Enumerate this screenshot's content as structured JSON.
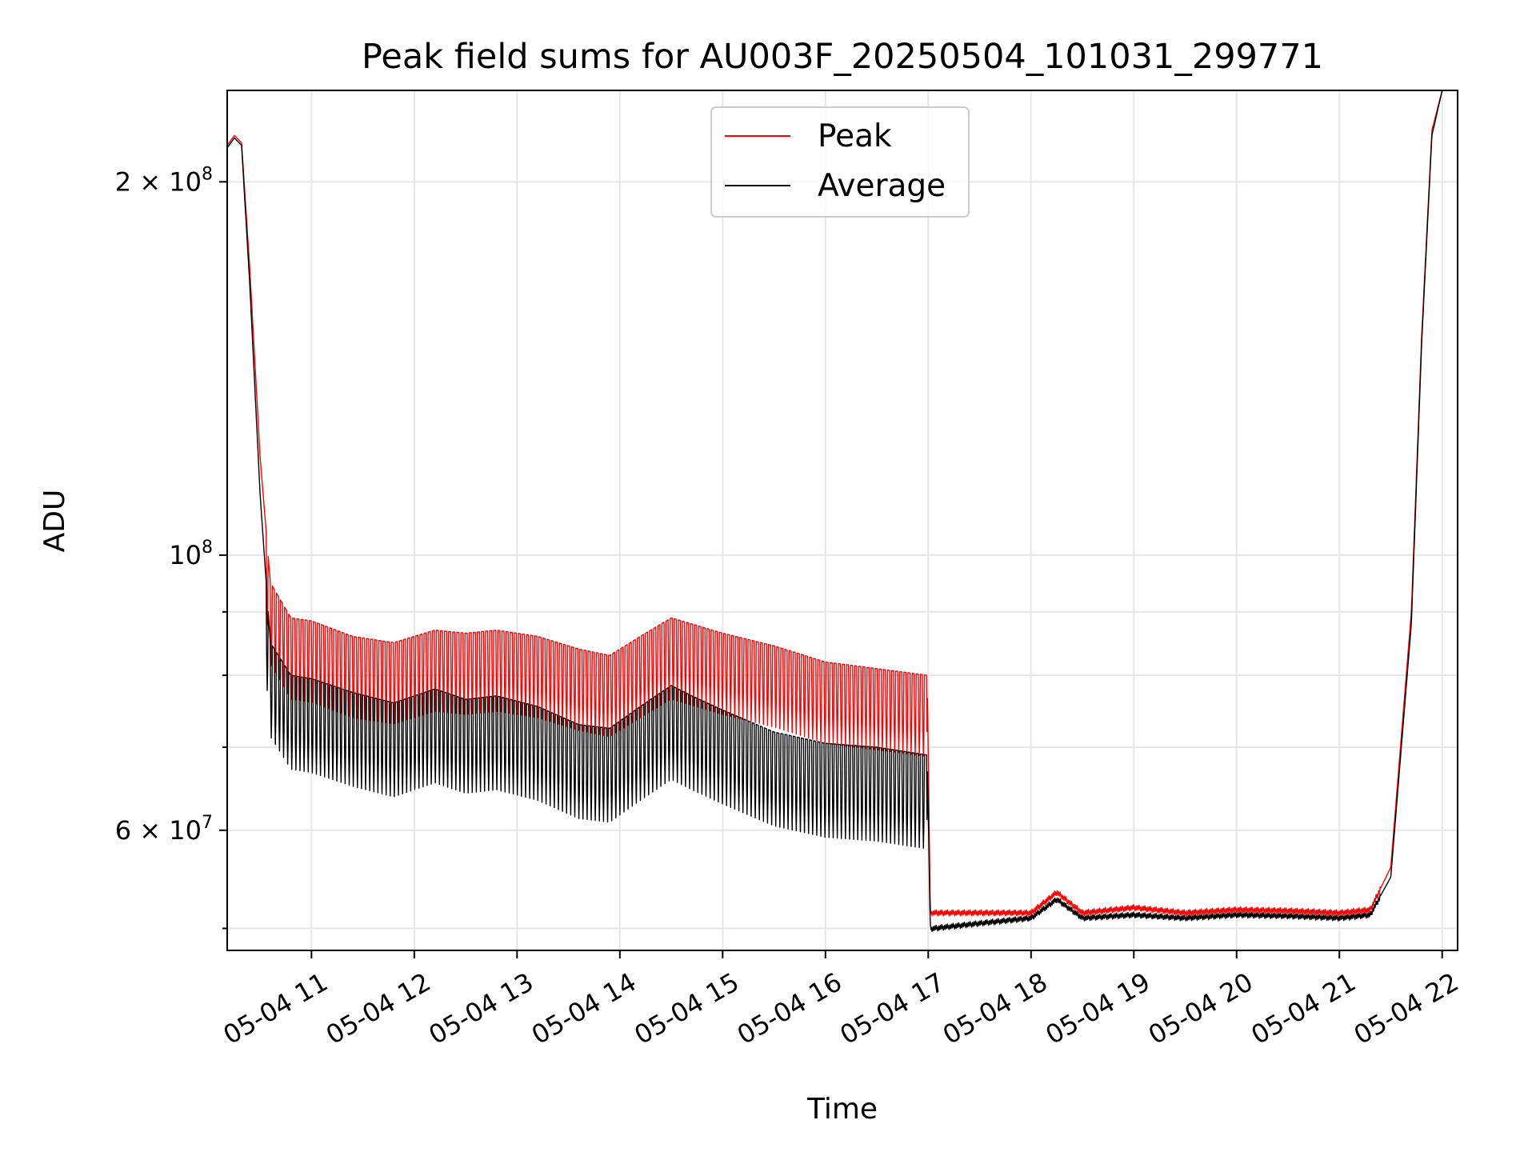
{
  "chart_data": {
    "type": "line",
    "title": "Peak field sums for AU003F_20250504_101031_299771",
    "xlabel": "Time",
    "ylabel": "ADU",
    "yscale": "log",
    "ylim": [
      48000000,
      237000000
    ],
    "xlim_hours": [
      10.18,
      22.15
    ],
    "grid": true,
    "legend_position": "upper-center",
    "x_ticks": [
      {
        "value": 11,
        "label": "05-04 11"
      },
      {
        "value": 12,
        "label": "05-04 12"
      },
      {
        "value": 13,
        "label": "05-04 13"
      },
      {
        "value": 14,
        "label": "05-04 14"
      },
      {
        "value": 15,
        "label": "05-04 15"
      },
      {
        "value": 16,
        "label": "05-04 16"
      },
      {
        "value": 17,
        "label": "05-04 17"
      },
      {
        "value": 18,
        "label": "05-04 18"
      },
      {
        "value": 19,
        "label": "05-04 19"
      },
      {
        "value": 20,
        "label": "05-04 20"
      },
      {
        "value": 21,
        "label": "05-04 21"
      },
      {
        "value": 22,
        "label": "05-04 22"
      }
    ],
    "y_major_ticks": [
      {
        "value": 60000000,
        "mantissa": "6 × 10",
        "exponent": "7"
      },
      {
        "value": 100000000,
        "mantissa": "10",
        "exponent": "8"
      },
      {
        "value": 200000000,
        "mantissa": "2 × 10",
        "exponent": "8"
      }
    ],
    "y_minor_ticks": [
      50000000,
      70000000,
      80000000,
      90000000
    ],
    "series": [
      {
        "name": "Peak",
        "color": "#ff0000",
        "x": [
          10.18,
          10.25,
          10.32,
          10.4,
          10.5,
          10.6,
          10.8,
          11.0,
          11.4,
          11.8,
          12.2,
          12.5,
          12.8,
          13.2,
          13.6,
          13.9,
          14.2,
          14.5,
          14.7,
          15.0,
          15.5,
          16.0,
          16.5,
          16.99,
          17.02,
          17.5,
          18.0,
          18.25,
          18.5,
          19.0,
          19.5,
          20.0,
          20.5,
          21.0,
          21.3,
          21.5,
          21.7,
          21.8,
          21.9,
          22.0,
          22.15
        ],
        "values": [
          214000000,
          218000000,
          215000000,
          170000000,
          120000000,
          95000000,
          89000000,
          88500000,
          86000000,
          85000000,
          87000000,
          86500000,
          87000000,
          86000000,
          84000000,
          83000000,
          86000000,
          89000000,
          88000000,
          86500000,
          84500000,
          82000000,
          81000000,
          80000000,
          51500000,
          51500000,
          51500000,
          53500000,
          51500000,
          52000000,
          51500000,
          51800000,
          51700000,
          51500000,
          51800000,
          56000000,
          90000000,
          150000000,
          220000000,
          237000000,
          237000000
        ]
      },
      {
        "name": "Average",
        "color": "#000000",
        "x": [
          10.18,
          10.25,
          10.32,
          10.4,
          10.5,
          10.6,
          10.8,
          11.0,
          11.4,
          11.8,
          12.2,
          12.5,
          12.8,
          13.2,
          13.6,
          13.9,
          14.2,
          14.5,
          14.7,
          15.0,
          15.5,
          16.0,
          16.5,
          16.99,
          17.02,
          17.5,
          18.0,
          18.25,
          18.5,
          19.0,
          19.5,
          20.0,
          20.5,
          21.0,
          21.3,
          21.5,
          21.7,
          21.8,
          21.9,
          22.0,
          22.15
        ],
        "values": [
          213000000,
          217000000,
          214000000,
          165000000,
          112000000,
          85000000,
          80000000,
          79500000,
          77500000,
          76000000,
          78000000,
          76500000,
          77000000,
          75500000,
          73000000,
          72500000,
          75500000,
          78500000,
          77000000,
          75000000,
          72000000,
          70500000,
          70000000,
          69000000,
          50000000,
          50500000,
          51000000,
          52800000,
          51000000,
          51300000,
          51000000,
          51300000,
          51200000,
          51000000,
          51300000,
          55000000,
          88000000,
          148000000,
          218000000,
          237000000,
          237000000
        ]
      }
    ]
  }
}
